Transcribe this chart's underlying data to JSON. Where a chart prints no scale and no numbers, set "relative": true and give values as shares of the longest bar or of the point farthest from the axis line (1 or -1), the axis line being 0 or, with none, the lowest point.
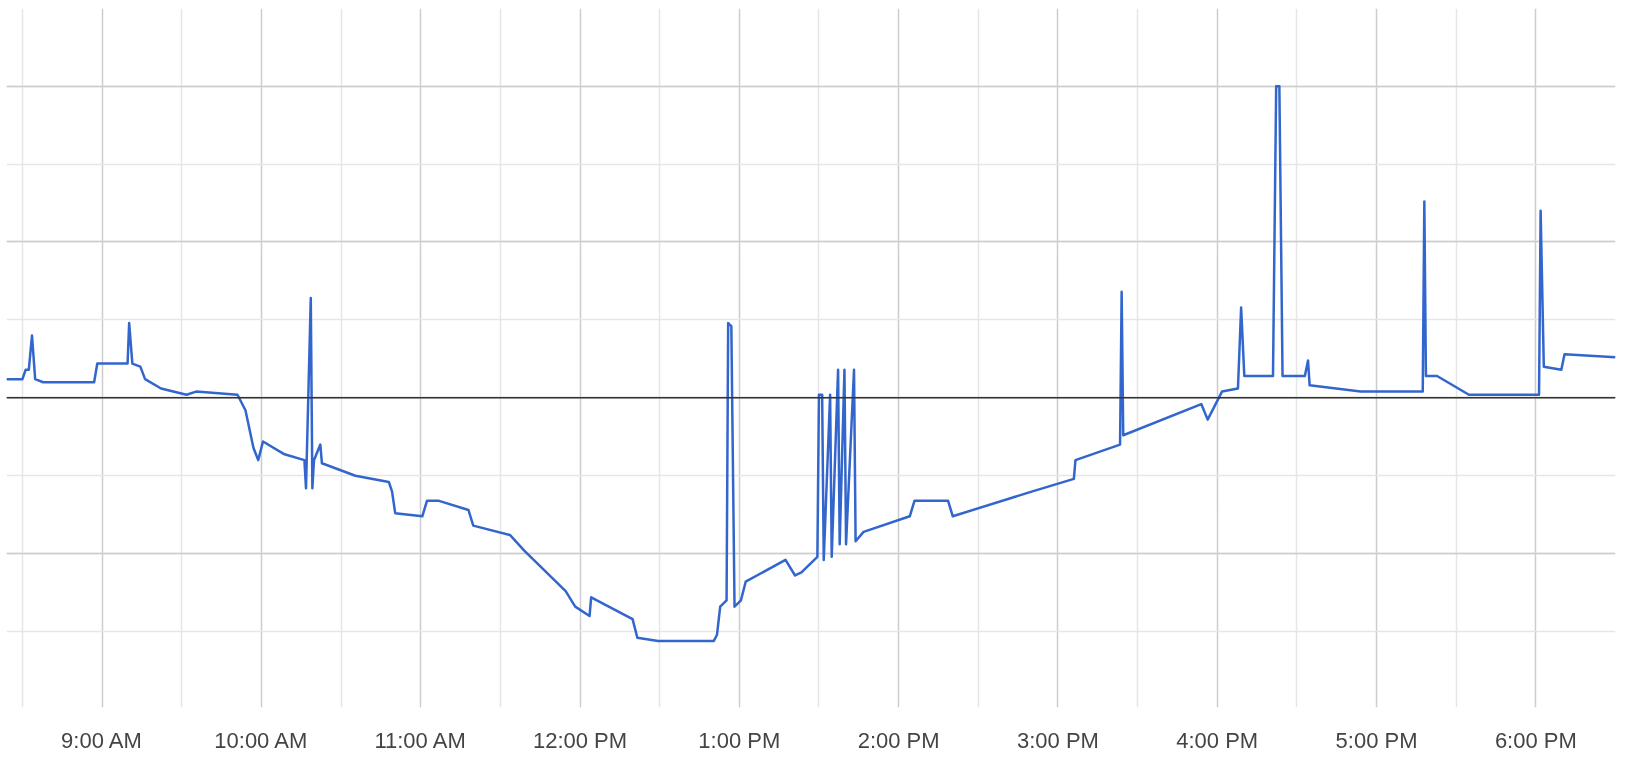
{
  "chart_data": {
    "type": "line",
    "relative": true,
    "grid": true,
    "marker": "none",
    "line_style": "solid",
    "xlim": [
      8.4,
      18.5
    ],
    "xticks": [
      {
        "value": 9,
        "label": "9:00 AM"
      },
      {
        "value": 10,
        "label": "10:00 AM"
      },
      {
        "value": 11,
        "label": "11:00 AM"
      },
      {
        "value": 12,
        "label": "12:00 PM"
      },
      {
        "value": 13,
        "label": "1:00 PM"
      },
      {
        "value": 14,
        "label": "2:00 PM"
      },
      {
        "value": 15,
        "label": "3:00 PM"
      },
      {
        "value": 16,
        "label": "4:00 PM"
      },
      {
        "value": 17,
        "label": "5:00 PM"
      },
      {
        "value": 18,
        "label": "6:00 PM"
      }
    ],
    "series": [
      {
        "color": "#3366cc",
        "x": [
          8.4,
          8.5,
          8.52,
          8.54,
          8.56,
          8.58,
          8.63,
          8.95,
          8.97,
          9.16,
          9.17,
          9.19,
          9.24,
          9.27,
          9.37,
          9.53,
          9.59,
          9.85,
          9.9,
          9.95,
          9.98,
          10.01,
          10.14,
          10.27,
          10.28,
          10.31,
          10.32,
          10.33,
          10.37,
          10.38,
          10.59,
          10.8,
          10.82,
          10.84,
          11.01,
          11.04,
          11.11,
          11.3,
          11.33,
          11.56,
          11.65,
          11.91,
          11.97,
          12.06,
          12.07,
          12.33,
          12.36,
          12.49,
          12.84,
          12.86,
          12.88,
          12.92,
          12.93,
          12.95,
          12.97,
          13.01,
          13.04,
          13.29,
          13.35,
          13.39,
          13.49,
          13.5,
          13.52,
          13.53,
          13.57,
          13.58,
          13.62,
          13.63,
          13.66,
          13.67,
          13.72,
          13.73,
          13.78,
          14.07,
          14.1,
          14.31,
          14.34,
          14.84,
          15.1,
          15.11,
          15.39,
          15.4,
          15.41,
          15.9,
          15.94,
          16.03,
          16.13,
          16.15,
          16.17,
          16.35,
          16.37,
          16.39,
          16.41,
          16.55,
          16.57,
          16.58,
          16.9,
          17.29,
          17.3,
          17.31,
          17.38,
          17.58,
          18.02,
          18.03,
          18.05,
          18.16,
          18.18,
          18.5
        ],
        "values": [
          0.06,
          0.06,
          0.09,
          0.09,
          0.2,
          0.06,
          0.05,
          0.05,
          0.11,
          0.11,
          0.24,
          0.11,
          0.1,
          0.06,
          0.03,
          0.01,
          0.02,
          0.01,
          -0.04,
          -0.16,
          -0.2,
          -0.14,
          -0.18,
          -0.2,
          -0.29,
          0.32,
          -0.29,
          -0.2,
          -0.15,
          -0.21,
          -0.25,
          -0.27,
          -0.3,
          -0.37,
          -0.38,
          -0.33,
          -0.33,
          -0.36,
          -0.41,
          -0.44,
          -0.49,
          -0.62,
          -0.67,
          -0.7,
          -0.64,
          -0.71,
          -0.77,
          -0.78,
          -0.78,
          -0.76,
          -0.67,
          -0.65,
          0.24,
          0.23,
          -0.67,
          -0.65,
          -0.59,
          -0.52,
          -0.57,
          -0.56,
          -0.51,
          0.01,
          0.01,
          -0.52,
          0.01,
          -0.51,
          0.09,
          -0.47,
          0.09,
          -0.47,
          0.09,
          -0.46,
          -0.43,
          -0.38,
          -0.33,
          -0.33,
          -0.38,
          -0.3,
          -0.26,
          -0.2,
          -0.15,
          0.34,
          -0.12,
          -0.02,
          -0.07,
          0.02,
          0.03,
          0.29,
          0.07,
          0.07,
          1,
          1,
          0.07,
          0.07,
          0.12,
          0.04,
          0.02,
          0.02,
          0.63,
          0.07,
          0.07,
          0.01,
          0.01,
          0.6,
          0.1,
          0.09,
          0.14,
          0.13
        ]
      }
    ]
  }
}
